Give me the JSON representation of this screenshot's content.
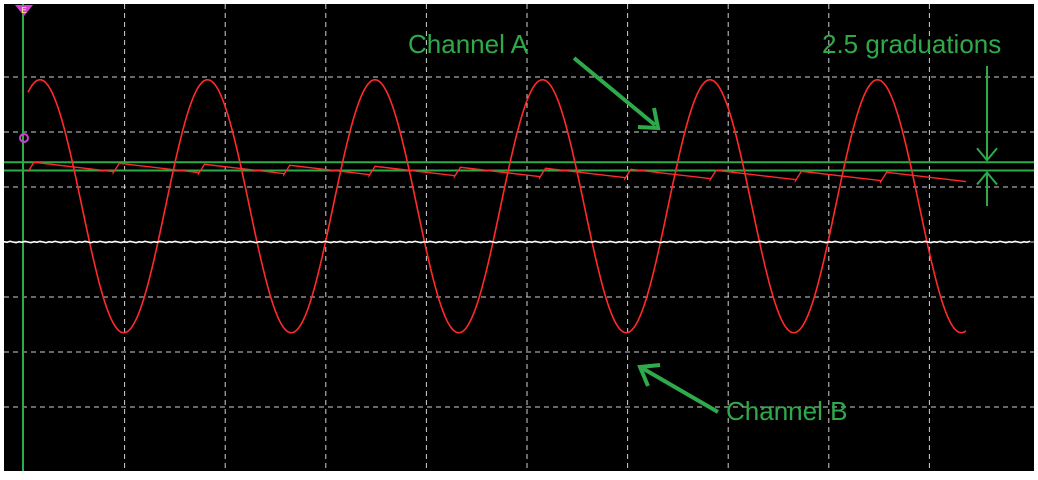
{
  "chart_data": {
    "type": "line",
    "title": "",
    "xlabel": "",
    "ylabel": "",
    "xlim": [
      0,
      10
    ],
    "ylim": [
      -4,
      4
    ],
    "grid": true,
    "grid_divisions": {
      "x": 10,
      "y": 8
    },
    "series": [
      {
        "color": "#ff2a2a",
        "shape": "sine",
        "cycles": 5.6,
        "amplitude_div": 1.65,
        "offset_div": 1.3,
        "max": 2.95,
        "min": -1.65
      },
      {
        "color": "#ff2a2a",
        "shape": "sawtooth",
        "cycles": 11,
        "start_div": 1.45,
        "end_div": 1.25,
        "step_div": 0.17
      },
      {
        "color": "#ffffff",
        "shape": "flat",
        "level_div": 0.0
      }
    ],
    "annotations": {
      "channel_a": "Channel A",
      "channel_b": "Channel B",
      "graduations": "2.5 graduations"
    }
  },
  "colors": {
    "screen_background": "#000000",
    "frame": "#ffffff",
    "grid": "#d0d0d0",
    "annotation": "#2eaa4a",
    "trigger_marker": "#d040d0",
    "cursor_lines": "#2eaa4a"
  },
  "icons": {
    "trigger_marker": "trigger-triangle-icon",
    "level_marker": "level-circle-icon"
  }
}
